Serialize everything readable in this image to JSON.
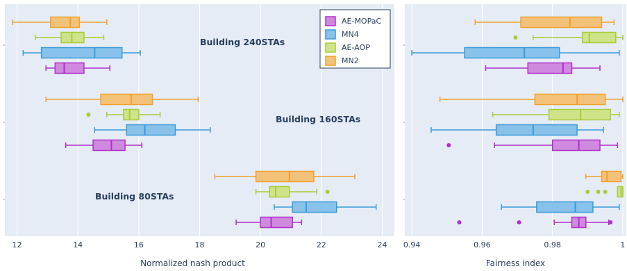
{
  "colors": {
    "AE-MOPaC": {
      "line": "#b030c8",
      "fill": "#cf8adf"
    },
    "MN4": {
      "line": "#3a9ad8",
      "fill": "#88c2ea"
    },
    "AE-AOP": {
      "line": "#a8cc38",
      "fill": "#cfe48a"
    },
    "MN2": {
      "line": "#f0a030",
      "fill": "#f3c27a"
    },
    "plot_bg": "#e5ecf6",
    "grid": "#ffffff"
  },
  "chart_data": [
    {
      "type": "box",
      "orientation": "horizontal",
      "xlabel": "Normalized nash product",
      "xlim": [
        11.6,
        24.4
      ],
      "xticks": [
        12,
        14,
        16,
        18,
        20,
        22,
        24
      ],
      "groups": [
        "Building 240STAs",
        "Building 160STAs",
        "Building 80STAs"
      ],
      "legend": {
        "entries": [
          "AE-MOPaC",
          "MN4",
          "AE-AOP",
          "MN2"
        ],
        "position": "top-right"
      },
      "series": [
        {
          "name": "MN2",
          "group": "Building 240STAs",
          "min": 11.85,
          "q1": 13.1,
          "median": 13.75,
          "q3": 14.05,
          "max": 14.95,
          "outliers": []
        },
        {
          "name": "AE-AOP",
          "group": "Building 240STAs",
          "min": 12.6,
          "q1": 13.45,
          "median": 13.8,
          "q3": 14.2,
          "max": 14.85,
          "outliers": []
        },
        {
          "name": "MN4",
          "group": "Building 240STAs",
          "min": 12.2,
          "q1": 12.8,
          "median": 14.55,
          "q3": 15.45,
          "max": 16.05,
          "outliers": []
        },
        {
          "name": "AE-MOPaC",
          "group": "Building 240STAs",
          "min": 12.95,
          "q1": 13.25,
          "median": 13.55,
          "q3": 14.2,
          "max": 15.05,
          "outliers": []
        },
        {
          "name": "MN2",
          "group": "Building 160STAs",
          "min": 12.95,
          "q1": 14.75,
          "median": 15.75,
          "q3": 16.45,
          "max": 17.95,
          "outliers": []
        },
        {
          "name": "AE-AOP",
          "group": "Building 160STAs",
          "min": 14.95,
          "q1": 15.5,
          "median": 15.7,
          "q3": 16.0,
          "max": 16.7,
          "outliers": [
            14.35
          ]
        },
        {
          "name": "MN4",
          "group": "Building 160STAs",
          "min": 14.55,
          "q1": 15.6,
          "median": 16.2,
          "q3": 17.2,
          "max": 18.35,
          "outliers": []
        },
        {
          "name": "AE-MOPaC",
          "group": "Building 160STAs",
          "min": 13.6,
          "q1": 14.5,
          "median": 15.1,
          "q3": 15.55,
          "max": 16.1,
          "outliers": []
        },
        {
          "name": "MN2",
          "group": "Building 80STAs",
          "min": 18.5,
          "q1": 19.85,
          "median": 20.95,
          "q3": 21.75,
          "max": 23.1,
          "outliers": []
        },
        {
          "name": "AE-AOP",
          "group": "Building 80STAs",
          "min": 19.85,
          "q1": 20.3,
          "median": 20.5,
          "q3": 20.95,
          "max": 21.85,
          "outliers": [
            22.2
          ]
        },
        {
          "name": "MN4",
          "group": "Building 80STAs",
          "min": 20.45,
          "q1": 21.05,
          "median": 21.5,
          "q3": 22.5,
          "max": 23.8,
          "outliers": []
        },
        {
          "name": "AE-MOPaC",
          "group": "Building 80STAs",
          "min": 19.2,
          "q1": 20.0,
          "median": 20.35,
          "q3": 21.05,
          "max": 21.35,
          "outliers": []
        }
      ]
    },
    {
      "type": "box",
      "orientation": "horizontal",
      "xlabel": "Fairness index",
      "xlim": [
        0.938,
        1.001
      ],
      "xticks": [
        0.94,
        0.96,
        0.98,
        1
      ],
      "groups": [
        "Building 240STAs",
        "Building 160STAs",
        "Building 80STAs"
      ],
      "series": [
        {
          "name": "MN2",
          "group": "Building 240STAs",
          "min": 0.958,
          "q1": 0.971,
          "median": 0.985,
          "q3": 0.994,
          "max": 0.9975,
          "outliers": []
        },
        {
          "name": "AE-AOP",
          "group": "Building 240STAs",
          "min": 0.9745,
          "q1": 0.9885,
          "median": 0.9905,
          "q3": 0.998,
          "max": 1.0,
          "outliers": [
            0.9695
          ]
        },
        {
          "name": "MN4",
          "group": "Building 240STAs",
          "min": 0.94,
          "q1": 0.955,
          "median": 0.972,
          "q3": 0.982,
          "max": 0.999,
          "outliers": []
        },
        {
          "name": "AE-MOPaC",
          "group": "Building 240STAs",
          "min": 0.961,
          "q1": 0.973,
          "median": 0.983,
          "q3": 0.9855,
          "max": 0.9935,
          "outliers": []
        },
        {
          "name": "MN2",
          "group": "Building 160STAs",
          "min": 0.948,
          "q1": 0.975,
          "median": 0.987,
          "q3": 0.995,
          "max": 1.0,
          "outliers": []
        },
        {
          "name": "AE-AOP",
          "group": "Building 160STAs",
          "min": 0.963,
          "q1": 0.979,
          "median": 0.988,
          "q3": 0.9965,
          "max": 0.999,
          "outliers": []
        },
        {
          "name": "MN4",
          "group": "Building 160STAs",
          "min": 0.9455,
          "q1": 0.964,
          "median": 0.9745,
          "q3": 0.987,
          "max": 0.9945,
          "outliers": []
        },
        {
          "name": "AE-MOPaC",
          "group": "Building 160STAs",
          "min": 0.9635,
          "q1": 0.98,
          "median": 0.9875,
          "q3": 0.9935,
          "max": 0.9985,
          "outliers": [
            0.9505
          ]
        },
        {
          "name": "MN2",
          "group": "Building 80STAs",
          "min": 0.9895,
          "q1": 0.994,
          "median": 0.9955,
          "q3": 0.9995,
          "max": 1.0,
          "outliers": []
        },
        {
          "name": "AE-AOP",
          "group": "Building 80STAs",
          "min": 0.9985,
          "q1": 0.9985,
          "median": 0.9995,
          "q3": 1.0,
          "max": 1.0,
          "outliers": [
            0.99,
            0.993,
            0.995
          ]
        },
        {
          "name": "MN4",
          "group": "Building 80STAs",
          "min": 0.9655,
          "q1": 0.9755,
          "median": 0.9865,
          "q3": 0.9915,
          "max": 0.999,
          "outliers": []
        },
        {
          "name": "AE-MOPaC",
          "group": "Building 80STAs",
          "min": 0.9805,
          "q1": 0.9855,
          "median": 0.9875,
          "q3": 0.9895,
          "max": 0.996,
          "outliers": [
            0.9535,
            0.9705,
            0.9965
          ]
        }
      ]
    }
  ]
}
